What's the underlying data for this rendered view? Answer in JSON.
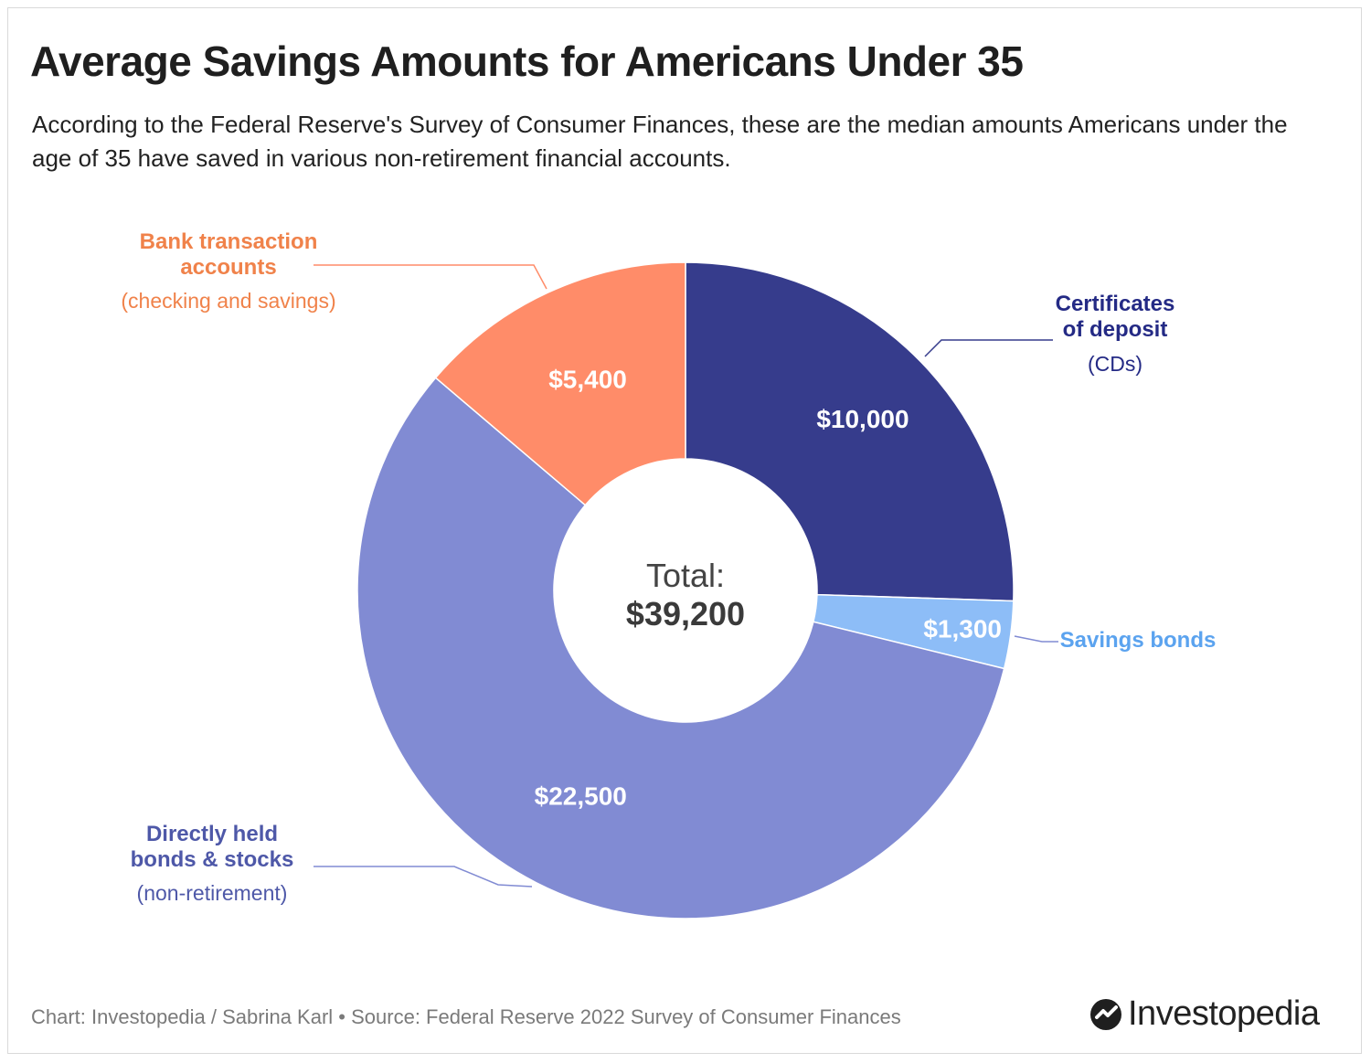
{
  "title": "Average Savings Amounts for Americans Under 35",
  "subtitle": "According to the Federal Reserve's Survey of Consumer Finances, these are the median amounts Americans under the age of 35 have saved in various non-retirement financial accounts.",
  "footer": "Chart: Investopedia / Sabrina Karl • Source: Federal Reserve 2022 Survey of Consumer Finances",
  "brand": {
    "name": "Investopedia",
    "icon": "investopedia-logo-icon"
  },
  "colors": {
    "cds": "#363C8C",
    "savings_bonds": "#8DBDF7",
    "stocks": "#818BD3",
    "bank": "#FF8C69",
    "cds_label": "#242A85",
    "savings_bonds_label": "#5BA3EF",
    "stocks_label": "#4E58A8",
    "bank_label": "#F0824A"
  },
  "chart_data": {
    "type": "pie",
    "variant": "donut",
    "center_label": "Total:",
    "center_value": "$39,200",
    "total": 39200,
    "slices": [
      {
        "name": "Certificates of deposit",
        "sub": "(CDs)",
        "value": 10000,
        "value_label": "$10,000"
      },
      {
        "name": "Savings bonds",
        "sub": "",
        "value": 1300,
        "value_label": "$1,300"
      },
      {
        "name": "Directly held bonds & stocks",
        "sub": "(non-retirement)",
        "value": 22500,
        "value_label": "$22,500"
      },
      {
        "name": "Bank transaction accounts",
        "sub": "(checking and savings)",
        "value": 5400,
        "value_label": "$5,400"
      }
    ],
    "callout_lines": {
      "cds": [
        "Certificates",
        "of deposit"
      ],
      "savings_bonds": [
        "Savings bonds"
      ],
      "stocks": [
        "Directly held",
        "bonds & stocks"
      ],
      "bank": [
        "Bank transaction",
        "accounts"
      ]
    }
  }
}
